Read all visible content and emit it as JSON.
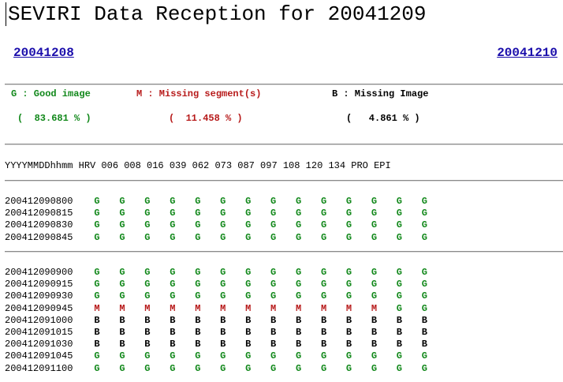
{
  "page_title": "SEVIRI Data Reception for 20041209",
  "nav": {
    "prev_date": "20041208",
    "next_date": "20041210"
  },
  "legend": {
    "good_label": "G : Good image",
    "missing_segment_label": "M : Missing segment(s)",
    "missing_image_label": "B : Missing Image",
    "good_pct": "(  83.681 % )",
    "missing_segment_pct": "(  11.458 % )",
    "missing_image_pct": "(   4.861 % )",
    "colors": {
      "G": "#11881a",
      "M": "#b71a1a",
      "B": "#000000"
    }
  },
  "table": {
    "header": "YYYYMMDDhhmm HRV 006 008 016 039 062 073 087 097 108 120 134 PRO EPI",
    "groups": [
      {
        "rows": [
          {
            "time": "200412090800",
            "status": [
              "G",
              "G",
              "G",
              "G",
              "G",
              "G",
              "G",
              "G",
              "G",
              "G",
              "G",
              "G",
              "G",
              "G"
            ]
          },
          {
            "time": "200412090815",
            "status": [
              "G",
              "G",
              "G",
              "G",
              "G",
              "G",
              "G",
              "G",
              "G",
              "G",
              "G",
              "G",
              "G",
              "G"
            ]
          },
          {
            "time": "200412090830",
            "status": [
              "G",
              "G",
              "G",
              "G",
              "G",
              "G",
              "G",
              "G",
              "G",
              "G",
              "G",
              "G",
              "G",
              "G"
            ]
          },
          {
            "time": "200412090845",
            "status": [
              "G",
              "G",
              "G",
              "G",
              "G",
              "G",
              "G",
              "G",
              "G",
              "G",
              "G",
              "G",
              "G",
              "G"
            ]
          }
        ]
      },
      {
        "rows": [
          {
            "time": "200412090900",
            "status": [
              "G",
              "G",
              "G",
              "G",
              "G",
              "G",
              "G",
              "G",
              "G",
              "G",
              "G",
              "G",
              "G",
              "G"
            ]
          },
          {
            "time": "200412090915",
            "status": [
              "G",
              "G",
              "G",
              "G",
              "G",
              "G",
              "G",
              "G",
              "G",
              "G",
              "G",
              "G",
              "G",
              "G"
            ]
          },
          {
            "time": "200412090930",
            "status": [
              "G",
              "G",
              "G",
              "G",
              "G",
              "G",
              "G",
              "G",
              "G",
              "G",
              "G",
              "G",
              "G",
              "G"
            ]
          },
          {
            "time": "200412090945",
            "status": [
              "M",
              "M",
              "M",
              "M",
              "M",
              "M",
              "M",
              "M",
              "M",
              "M",
              "M",
              "M",
              "G",
              "G"
            ]
          },
          {
            "time": "200412091000",
            "status": [
              "B",
              "B",
              "B",
              "B",
              "B",
              "B",
              "B",
              "B",
              "B",
              "B",
              "B",
              "B",
              "B",
              "B"
            ]
          },
          {
            "time": "200412091015",
            "status": [
              "B",
              "B",
              "B",
              "B",
              "B",
              "B",
              "B",
              "B",
              "B",
              "B",
              "B",
              "B",
              "B",
              "B"
            ]
          },
          {
            "time": "200412091030",
            "status": [
              "B",
              "B",
              "B",
              "B",
              "B",
              "B",
              "B",
              "B",
              "B",
              "B",
              "B",
              "B",
              "B",
              "B"
            ]
          },
          {
            "time": "200412091045",
            "status": [
              "G",
              "G",
              "G",
              "G",
              "G",
              "G",
              "G",
              "G",
              "G",
              "G",
              "G",
              "G",
              "G",
              "G"
            ]
          },
          {
            "time": "200412091100",
            "status": [
              "G",
              "G",
              "G",
              "G",
              "G",
              "G",
              "G",
              "G",
              "G",
              "G",
              "G",
              "G",
              "G",
              "G"
            ]
          }
        ]
      }
    ]
  }
}
